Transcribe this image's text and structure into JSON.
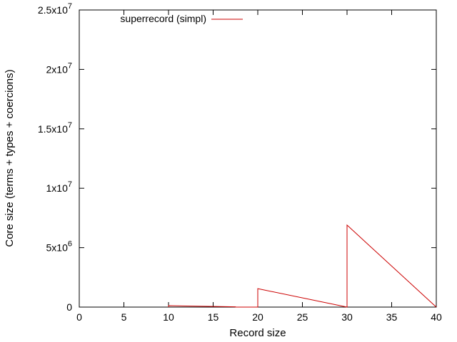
{
  "chart_data": {
    "type": "line",
    "xlabel": "Record size",
    "ylabel": "Core size (terms + types + coercions)",
    "xlim": [
      0,
      40
    ],
    "ylim": [
      0,
      25000000
    ],
    "x_ticks": [
      0,
      5,
      10,
      15,
      20,
      25,
      30,
      35,
      40
    ],
    "x_tick_labels": [
      "0",
      "5",
      "10",
      "15",
      "20",
      "25",
      "30",
      "35",
      "40"
    ],
    "y_ticks": [
      0,
      5000000,
      10000000,
      15000000,
      20000000,
      25000000
    ],
    "y_tick_labels": [
      {
        "base": "0",
        "exp": ""
      },
      {
        "base": "5x10",
        "exp": "6"
      },
      {
        "base": "1x10",
        "exp": "7"
      },
      {
        "base": "1.5x10",
        "exp": "7"
      },
      {
        "base": "2x10",
        "exp": "7"
      },
      {
        "base": "2.5x10",
        "exp": "7"
      }
    ],
    "grid": false,
    "legend_position": "top-left",
    "series": [
      {
        "name": "superrecord (simpl)",
        "color": "#cc0000",
        "x": [
          10,
          10,
          17.5,
          17.5,
          20,
          20,
          30,
          30,
          40
        ],
        "y": [
          0,
          120000,
          20000,
          0,
          0,
          1550000,
          0,
          6900000,
          0
        ]
      }
    ]
  }
}
